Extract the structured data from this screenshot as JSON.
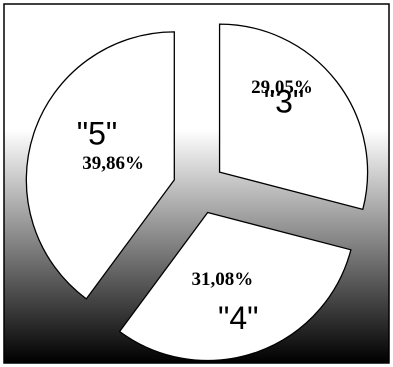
{
  "chart_data": {
    "type": "pie",
    "categories": [
      "\"3\"",
      "\"4\"",
      "\"5\""
    ],
    "values": [
      29.05,
      31.08,
      39.86
    ],
    "value_labels": [
      "29,05%",
      "31,08%",
      "39,86%"
    ],
    "exploded": true,
    "title": "",
    "legend": "none"
  },
  "colors": {
    "slice_fill": "#ffffff",
    "slice_stroke": "#000000",
    "background_gradient": [
      "#ffffff",
      "#000000"
    ]
  }
}
